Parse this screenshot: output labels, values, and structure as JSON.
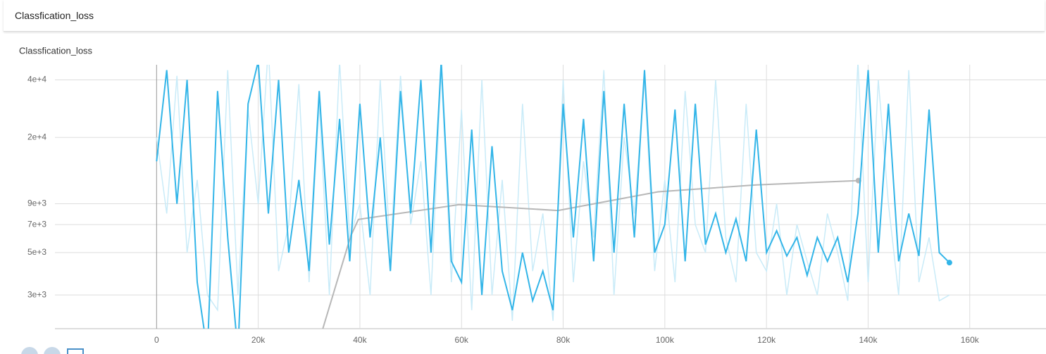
{
  "header": {
    "title": "Classfication_loss"
  },
  "chart_data": {
    "type": "line",
    "title": "Classfication_loss",
    "log_y": true,
    "grid": true,
    "xlim": [
      -20000,
      175000
    ],
    "ylim": [
      2000,
      48000
    ],
    "xticks": [
      {
        "value": 0,
        "label": "0"
      },
      {
        "value": 20000,
        "label": "20k"
      },
      {
        "value": 40000,
        "label": "40k"
      },
      {
        "value": 60000,
        "label": "60k"
      },
      {
        "value": 80000,
        "label": "80k"
      },
      {
        "value": 100000,
        "label": "100k"
      },
      {
        "value": 120000,
        "label": "120k"
      },
      {
        "value": 140000,
        "label": "140k"
      },
      {
        "value": 160000,
        "label": "160k"
      }
    ],
    "yticks": [
      {
        "value": 3000,
        "label": "3e+3"
      },
      {
        "value": 5000,
        "label": "5e+3"
      },
      {
        "value": 7000,
        "label": "7e+3"
      },
      {
        "value": 9000,
        "label": "9e+3"
      },
      {
        "value": 20000,
        "label": "2e+4"
      },
      {
        "value": 40000,
        "label": "4e+4"
      }
    ],
    "series": [
      {
        "color": "#c9ebf8",
        "x": [
          0,
          2000,
          4000,
          6000,
          8000,
          10000,
          12000,
          14000,
          16000,
          18000,
          20000,
          22000,
          24000,
          26000,
          28000,
          30000,
          32000,
          34000,
          36000,
          38000,
          40000,
          42000,
          44000,
          46000,
          48000,
          50000,
          52000,
          54000,
          56000,
          58000,
          60000,
          62000,
          64000,
          66000,
          68000,
          70000,
          72000,
          74000,
          76000,
          78000,
          80000,
          82000,
          84000,
          86000,
          88000,
          90000,
          92000,
          94000,
          96000,
          98000,
          100000,
          102000,
          104000,
          106000,
          108000,
          110000,
          112000,
          114000,
          116000,
          118000,
          120000,
          122000,
          124000,
          126000,
          128000,
          130000,
          132000,
          134000,
          136000,
          138000,
          140000,
          142000,
          144000,
          146000,
          148000,
          150000,
          152000,
          154000,
          156000
        ],
        "values": [
          20000,
          8000,
          42000,
          5000,
          12000,
          3000,
          2500,
          45000,
          3000,
          28000,
          9000,
          60000,
          4000,
          7000,
          38000,
          3500,
          30000,
          3000,
          50000,
          6000,
          9000,
          3000,
          40000,
          5000,
          42000,
          7000,
          15000,
          3000,
          45000,
          3500,
          28000,
          2500,
          40000,
          3000,
          12000,
          2200,
          30000,
          4000,
          8000,
          2200,
          40000,
          3500,
          15000,
          6000,
          45000,
          3000,
          20000,
          8000,
          40000,
          4000,
          12000,
          3500,
          35000,
          7000,
          5000,
          40000,
          6000,
          3500,
          30000,
          5000,
          4000,
          9000,
          3000,
          7000,
          4500,
          3000,
          8000,
          5000,
          2800,
          50000,
          3500,
          40000,
          9000,
          3000,
          45000,
          3500,
          6000,
          2800,
          3000
        ]
      },
      {
        "color": "#b7b7b7",
        "x": [
          32700,
          38200,
          39700,
          59500,
          79000,
          98700,
          118000,
          138100
        ],
        "values": [
          2000,
          6100,
          7450,
          8900,
          8300,
          10400,
          11300,
          11900
        ]
      },
      {
        "color": "#33b5e8",
        "x": [
          0,
          2000,
          4000,
          6000,
          8000,
          10000,
          12000,
          14000,
          16000,
          18000,
          20000,
          22000,
          24000,
          26000,
          28000,
          30000,
          32000,
          34000,
          36000,
          38000,
          40000,
          42000,
          44000,
          46000,
          48000,
          50000,
          52000,
          54000,
          56000,
          58000,
          60000,
          62000,
          64000,
          66000,
          68000,
          70000,
          72000,
          74000,
          76000,
          78000,
          80000,
          82000,
          84000,
          86000,
          88000,
          90000,
          92000,
          94000,
          96000,
          98000,
          100000,
          102000,
          104000,
          106000,
          108000,
          110000,
          112000,
          114000,
          116000,
          118000,
          120000,
          122000,
          124000,
          126000,
          128000,
          130000,
          132000,
          134000,
          136000,
          138000,
          140000,
          142000,
          144000,
          146000,
          148000,
          150000,
          152000,
          154000,
          156000
        ],
        "values": [
          15000,
          45000,
          9000,
          40000,
          3500,
          1500,
          35000,
          6000,
          1500,
          30000,
          50000,
          8000,
          40000,
          5000,
          12000,
          4000,
          35000,
          5500,
          25000,
          4500,
          30000,
          6000,
          20000,
          4000,
          35000,
          8000,
          40000,
          5000,
          50000,
          4500,
          3500,
          22000,
          3000,
          18000,
          4000,
          2500,
          5000,
          2800,
          4000,
          2500,
          30000,
          6000,
          25000,
          4500,
          35000,
          5000,
          30000,
          6000,
          45000,
          5000,
          7000,
          28000,
          4500,
          30000,
          5500,
          8000,
          5000,
          7500,
          4500,
          22000,
          5000,
          6500,
          4800,
          6000,
          3800,
          6000,
          4500,
          6000,
          3500,
          8000,
          45000,
          5000,
          30000,
          4500,
          8000,
          4800,
          28000,
          5000,
          4430
        ]
      }
    ]
  }
}
